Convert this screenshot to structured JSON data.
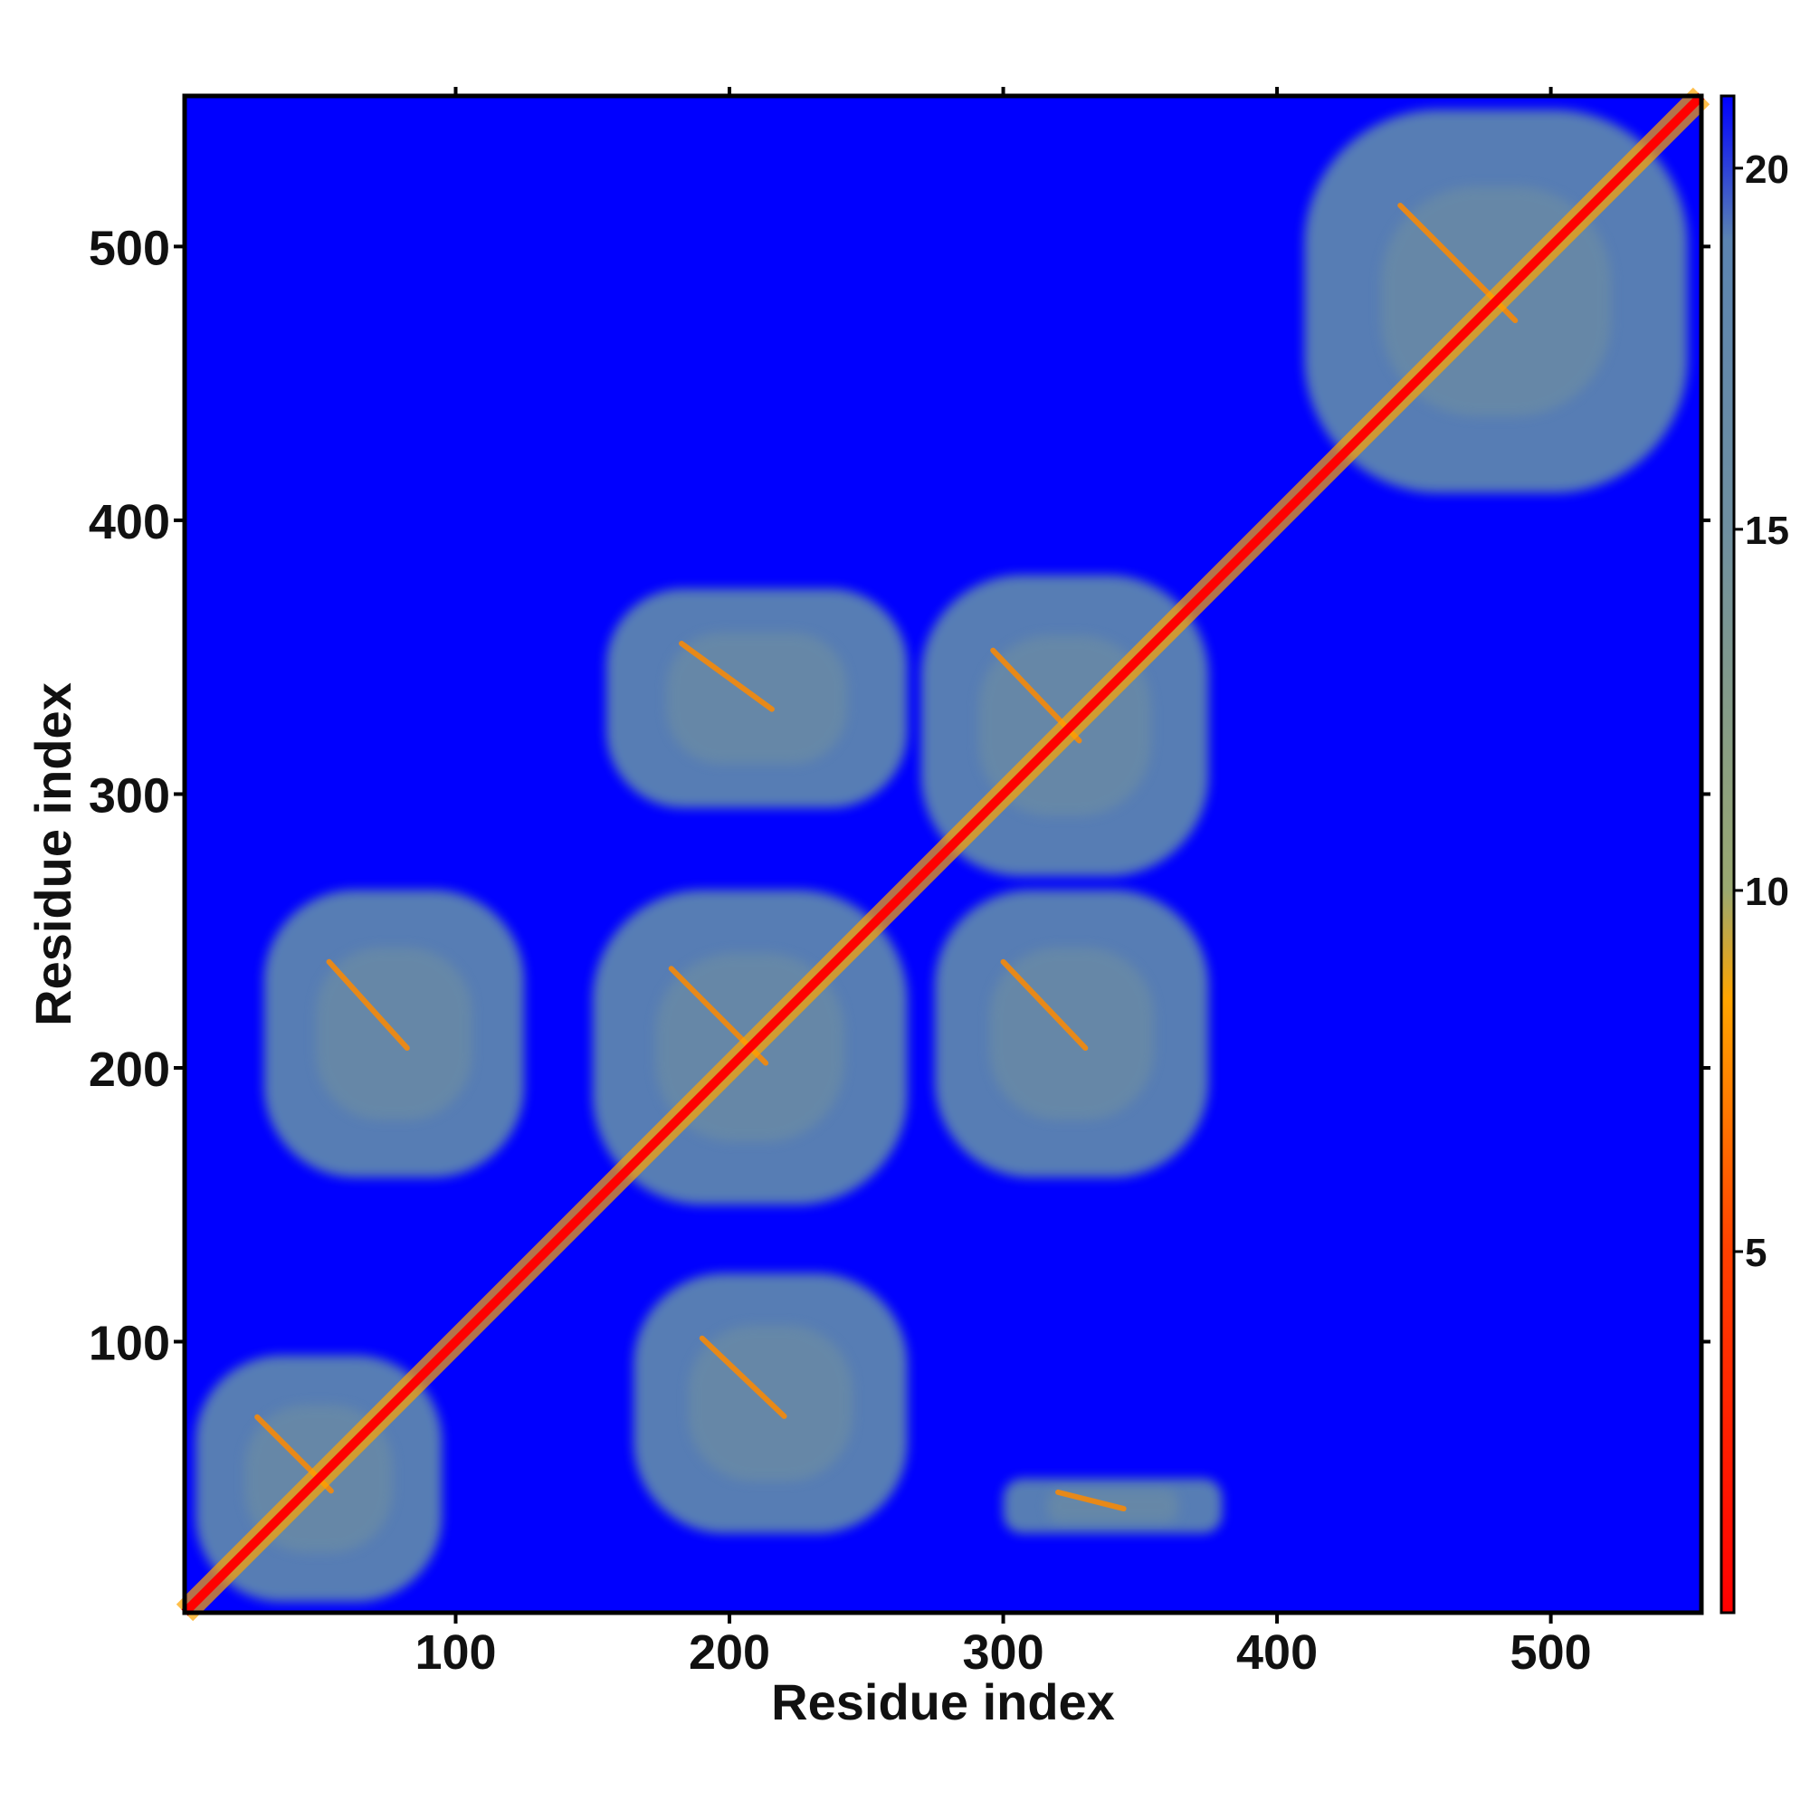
{
  "chart_data": {
    "type": "heatmap",
    "title": "",
    "xlabel": "Residue index",
    "ylabel": "Residue index",
    "xlim": [
      1,
      555
    ],
    "ylim": [
      1,
      555
    ],
    "x_ticks": [
      100,
      200,
      300,
      400,
      500
    ],
    "y_ticks": [
      100,
      200,
      300,
      400,
      500
    ],
    "grid": false,
    "legend": "right",
    "colorbar": {
      "range": [
        0,
        21
      ],
      "tick_values": [
        5,
        10,
        15,
        20
      ],
      "stops": [
        {
          "value": 0,
          "color": "#ff0000"
        },
        {
          "value": 5,
          "color": "#ff4000"
        },
        {
          "value": 8.5,
          "color": "#ffa500"
        },
        {
          "value": 10,
          "color": "#9aa870"
        },
        {
          "value": 15,
          "color": "#6f8fa0"
        },
        {
          "value": 19,
          "color": "#5b84b1"
        },
        {
          "value": 21,
          "color": "#0000ff"
        }
      ],
      "background_color": "#0000ff"
    },
    "contact_blocks": [
      {
        "x": [
          5,
          95
        ],
        "y": [
          5,
          95
        ]
      },
      {
        "x": [
          30,
          125
        ],
        "y": [
          160,
          265
        ]
      },
      {
        "x": [
          150,
          265
        ],
        "y": [
          150,
          265
        ]
      },
      {
        "x": [
          165,
          265
        ],
        "y": [
          30,
          125
        ]
      },
      {
        "x": [
          155,
          265
        ],
        "y": [
          295,
          375
        ]
      },
      {
        "x": [
          270,
          375
        ],
        "y": [
          270,
          380
        ]
      },
      {
        "x": [
          275,
          375
        ],
        "y": [
          160,
          265
        ]
      },
      {
        "x": [
          410,
          550
        ],
        "y": [
          410,
          550
        ]
      },
      {
        "x": [
          300,
          380
        ],
        "y": [
          30,
          50
        ]
      }
    ],
    "diagonal": {
      "from": 1,
      "to": 555
    }
  }
}
